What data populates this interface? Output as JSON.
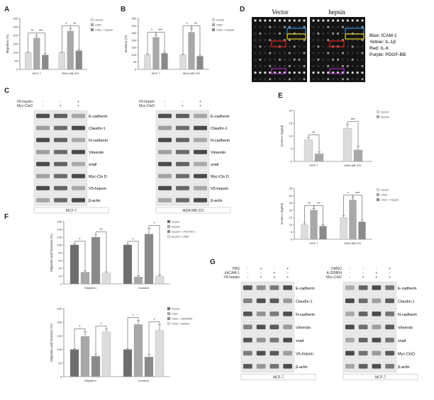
{
  "panels": {
    "A": "A",
    "B": "B",
    "C": "C",
    "D": "D",
    "E": "E",
    "F": "F",
    "G": "G"
  },
  "colors": {
    "light": "#dcdcdc",
    "mid": "#a8a8a8",
    "dark": "#8a8a8a",
    "darker": "#6e6e6e",
    "blot_bg": "#e8e8e8",
    "band": "#3a3a3a",
    "array_blue": "#2a8ad0",
    "array_yellow": "#e0d020",
    "array_red": "#e02020",
    "array_purple": "#a030c0"
  },
  "chart_data": [
    {
      "id": "A",
      "type": "bar",
      "ylabel": "Migration (%)",
      "ylim": [
        0,
        300
      ],
      "yticks": [
        0,
        50,
        100,
        150,
        200,
        250,
        300
      ],
      "categories": [
        "MCF-7",
        "MDA-MB-231"
      ],
      "series": [
        {
          "name": "Vector",
          "values": [
            100,
            100
          ],
          "err": [
            3,
            3
          ]
        },
        {
          "name": "CtsD",
          "values": [
            185,
            225
          ],
          "err": [
            12,
            15
          ]
        },
        {
          "name": "CtsD + hepsin",
          "values": [
            85,
            110
          ],
          "err": [
            8,
            10
          ]
        }
      ],
      "annotations": [
        "**",
        "***",
        "*",
        "**"
      ]
    },
    {
      "id": "B",
      "type": "bar",
      "ylabel": "Invasion (%)",
      "ylim": [
        0,
        350
      ],
      "yticks": [
        0,
        50,
        100,
        150,
        200,
        250,
        300,
        350
      ],
      "categories": [
        "MCF-7",
        "MDA-MB-231"
      ],
      "series": [
        {
          "name": "Vector",
          "values": [
            100,
            100
          ],
          "err": [
            3,
            3
          ]
        },
        {
          "name": "CtsD",
          "values": [
            220,
            255
          ],
          "err": [
            15,
            25
          ]
        },
        {
          "name": "CtsD + hepsin",
          "values": [
            110,
            90
          ],
          "err": [
            8,
            8
          ]
        }
      ],
      "annotations": [
        "*",
        "***",
        "*",
        "**"
      ]
    },
    {
      "id": "E1",
      "type": "bar",
      "ylabel": "ICAM-1 (ng/ml)",
      "ylim": [
        0,
        20
      ],
      "yticks": [
        0,
        5,
        10,
        15,
        20
      ],
      "categories": [
        "MCF-7",
        "MDA-MB-231"
      ],
      "series": [
        {
          "name": "Vector",
          "values": [
            8.5,
            13
          ],
          "err": [
            0.8,
            1.5
          ]
        },
        {
          "name": "hepsin",
          "values": [
            3,
            4.5
          ],
          "err": [
            0.7,
            1.5
          ]
        }
      ],
      "annotations": [
        "**",
        "***"
      ]
    },
    {
      "id": "E2",
      "type": "bar",
      "ylabel": "ICAM-1 (ng/ml)",
      "ylim": [
        0,
        35
      ],
      "yticks": [
        0,
        5,
        10,
        15,
        20,
        25,
        30,
        35
      ],
      "categories": [
        "MCF-7",
        "MDA-MB-231"
      ],
      "series": [
        {
          "name": "Vector",
          "values": [
            10,
            15
          ],
          "err": [
            1.2,
            1.5
          ]
        },
        {
          "name": "CtsD",
          "values": [
            20,
            27
          ],
          "err": [
            1.2,
            1.3
          ]
        },
        {
          "name": "CtsD + hepsin",
          "values": [
            9,
            12
          ],
          "err": [
            1,
            1.3
          ]
        }
      ],
      "annotations": [
        "**",
        "**",
        "*",
        "***"
      ]
    },
    {
      "id": "F1",
      "type": "bar",
      "ylabel": "Migration and Invasion (%)",
      "ylim": [
        0,
        160
      ],
      "yticks": [
        0,
        20,
        40,
        60,
        80,
        100,
        120,
        140,
        160
      ],
      "categories": [
        "Migration",
        "Invasion"
      ],
      "series": [
        {
          "name": "Vector",
          "values": [
            100,
            100
          ],
          "err": [
            2,
            2
          ]
        },
        {
          "name": "hepsin",
          "values": [
            30,
            18
          ],
          "err": [
            4,
            3
          ]
        },
        {
          "name": "hepsin + rhICAM-1",
          "values": [
            120,
            128
          ],
          "err": [
            6,
            15
          ]
        },
        {
          "name": "hepsin + PBS",
          "values": [
            28,
            20
          ],
          "err": [
            3,
            3
          ]
        }
      ],
      "annotations": [
        "*",
        "**",
        "*",
        "*"
      ]
    },
    {
      "id": "F2",
      "type": "bar",
      "ylabel": "Migration and Invasion (%)",
      "ylim": [
        0,
        250
      ],
      "yticks": [
        0,
        50,
        100,
        150,
        200,
        250
      ],
      "categories": [
        "Migration",
        "Invasion"
      ],
      "series": [
        {
          "name": "Vector",
          "values": [
            100,
            100
          ],
          "err": [
            3,
            3
          ]
        },
        {
          "name": "CtsD",
          "values": [
            148,
            192
          ],
          "err": [
            18,
            15
          ]
        },
        {
          "name": "CtsD + A205804",
          "values": [
            75,
            72
          ],
          "err": [
            6,
            10
          ]
        },
        {
          "name": "CtsD + DMSO",
          "values": [
            165,
            170
          ],
          "err": [
            10,
            22
          ]
        }
      ],
      "annotations": [
        "*",
        "*",
        "*",
        "*"
      ]
    }
  ],
  "blots": {
    "C_left": {
      "rows_top": [
        {
          "label": "V5-hepsin",
          "marks": [
            "-",
            "-",
            "+"
          ]
        },
        {
          "label": "Myc-CtsD",
          "marks": [
            "-",
            "+",
            "+"
          ]
        }
      ],
      "bands": [
        "E-cadherin",
        "Claudin-1",
        "N-cadherin",
        "Vimentin",
        "snail",
        "Myc-Cts D",
        "V5-hepsin",
        "β-actin"
      ],
      "cell": "MCF-7"
    },
    "C_right": {
      "rows_top": [
        {
          "label": "V5-hepsin",
          "marks": [
            "-",
            "-",
            "+"
          ]
        },
        {
          "label": "Myc-CtsD",
          "marks": [
            "-",
            "+",
            "+"
          ]
        }
      ],
      "bands": [
        "E-cadherin",
        "Claudin-1",
        "N-cadherin",
        "Vimentin",
        "snail",
        "Myc-Cts D",
        "V5-hepsin",
        "β-actin"
      ],
      "cell": "MDA-MB-231"
    },
    "G_left": {
      "rows_top": [
        {
          "label": "PBS",
          "marks": [
            "-",
            "+",
            "-",
            "+"
          ]
        },
        {
          "label": "rhICAM-1",
          "marks": [
            "-",
            "-",
            "+",
            "-"
          ]
        },
        {
          "label": "V5-hepsin",
          "marks": [
            "-",
            "+",
            "+",
            "+"
          ]
        }
      ],
      "bands": [
        "E-cadherin",
        "Claudin-1",
        "N-cadherin",
        "Vimentin",
        "snail",
        "V5-hepsin",
        "β-actin"
      ],
      "cell": "MCF-7"
    },
    "G_right": {
      "rows_top": [
        {
          "label": "DMSO",
          "marks": [
            "-",
            "-",
            "-",
            "+"
          ]
        },
        {
          "label": "A-205804",
          "marks": [
            "-",
            "-",
            "+",
            "-"
          ]
        },
        {
          "label": "Myc-CtsD",
          "marks": [
            "-",
            "+",
            "+",
            "+"
          ]
        }
      ],
      "bands": [
        "E-cadherin",
        "Claudin-1",
        "N-cadherin",
        "Vimentin",
        "snail",
        "Myc-CtsD",
        "β-actin"
      ],
      "cell": "MCF-7"
    }
  },
  "array": {
    "vector_title": "Vector",
    "hepsin_title": "hepsin",
    "legend": [
      "Blue: ICAM-1",
      "Yellow: IL-1β",
      "Red: IL-6",
      "Purple: PDGF-BB"
    ]
  }
}
